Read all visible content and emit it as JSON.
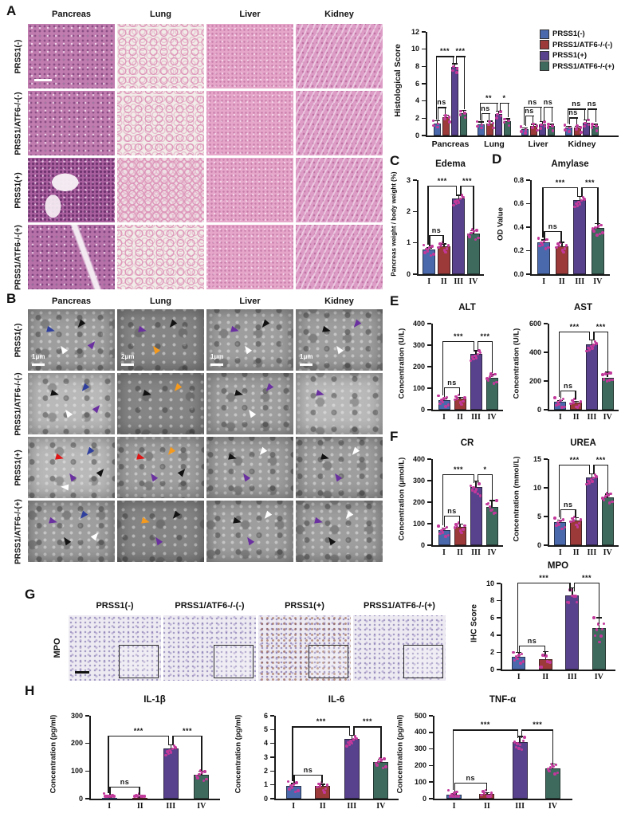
{
  "colors": {
    "group_blue": "#4a69ad",
    "group_red": "#9c3a3a",
    "group_purple": "#58418d",
    "group_teal": "#3e6a5e",
    "scatter_dots": "#c2399b",
    "axis": "#1a1a1a",
    "arrow_blue": "#2f3f9e",
    "arrow_black": "#111111",
    "arrow_white": "#ffffff",
    "arrow_purple": "#6a30a0",
    "arrow_orange": "#f59a1d",
    "arrow_red": "#e01414"
  },
  "legend": {
    "items": [
      {
        "label": "PRSS1(-)",
        "color": "#4a69ad"
      },
      {
        "label": "PRSS1/ATF6-/-(-)",
        "color": "#9c3a3a"
      },
      {
        "label": "PRSS1(+)",
        "color": "#58418d"
      },
      {
        "label": "PRSS1/ATF6-/-(+)",
        "color": "#3e6a5e"
      }
    ]
  },
  "panels": {
    "A": {
      "letter": "A",
      "columns": [
        "Pancreas",
        "Lung",
        "Liver",
        "Kidney"
      ],
      "rows": [
        "PRSS1(-)",
        "PRSS1/ATF6-/-(-)",
        "PRSS1(+)",
        "PRSS1/ATF6-/-(+)"
      ]
    },
    "B": {
      "letter": "B",
      "columns": [
        "Pancreas",
        "Lung",
        "Liver",
        "Kidney"
      ],
      "rows": [
        "PRSS1(-)",
        "PRSS1/ATF6-/-(-)",
        "PRSS1(+)",
        "PRSS1/ATF6-/-(+)"
      ],
      "scale_bars": [
        "1μm",
        "2μm",
        "1μm",
        "1μm"
      ],
      "tiles": [
        [
          {
            "shade": 1,
            "arrows": [
              "blue",
              "black",
              "white",
              "purple"
            ]
          },
          {
            "shade": 2,
            "arrows": [
              "purple",
              "black",
              "orange"
            ]
          },
          {
            "shade": 1,
            "arrows": [
              "purple",
              "black",
              "white"
            ]
          },
          {
            "shade": 1,
            "arrows": [
              "black",
              "purple",
              "white"
            ]
          }
        ],
        [
          {
            "shade": 0,
            "arrows": [
              "black",
              "blue",
              "white",
              "purple"
            ]
          },
          {
            "shade": 2,
            "arrows": [
              "black",
              "orange"
            ]
          },
          {
            "shade": 1,
            "arrows": [
              "black",
              "purple",
              "white"
            ]
          },
          {
            "shade": 0,
            "arrows": [
              "purple"
            ]
          }
        ],
        [
          {
            "shade": 0,
            "arrows": [
              "red",
              "blue",
              "purple",
              "black",
              "white"
            ]
          },
          {
            "shade": 1,
            "arrows": [
              "red",
              "orange",
              "purple",
              "black"
            ]
          },
          {
            "shade": 1,
            "arrows": [
              "black",
              "white",
              "purple"
            ]
          },
          {
            "shade": 1,
            "arrows": [
              "black",
              "white",
              "purple"
            ]
          }
        ],
        [
          {
            "shade": 1,
            "arrows": [
              "purple",
              "blue",
              "black",
              "white"
            ]
          },
          {
            "shade": 2,
            "arrows": [
              "orange",
              "black",
              "purple"
            ]
          },
          {
            "shade": 1,
            "arrows": [
              "black",
              "white",
              "purple"
            ]
          },
          {
            "shade": 1,
            "arrows": [
              "purple",
              "white",
              "black"
            ]
          }
        ]
      ]
    },
    "C": {
      "letter": "C"
    },
    "D": {
      "letter": "D"
    },
    "E": {
      "letter": "E"
    },
    "F": {
      "letter": "F"
    },
    "G": {
      "letter": "G",
      "row_label": "MPO",
      "columns": [
        "PRSS1(-)",
        "PRSS1/ATF6-/-(-)",
        "PRSS1(+)",
        "PRSS1/ATF6-/-(+)"
      ]
    },
    "H": {
      "letter": "H"
    }
  },
  "chart_data": [
    {
      "id": "histological_score",
      "type": "grouped_bar",
      "title": "",
      "ylabel": "Histological Score",
      "ylim": [
        0,
        12
      ],
      "yticks": [
        0,
        2,
        4,
        6,
        8,
        10,
        12
      ],
      "categories": [
        "Pancreas",
        "Lung",
        "Liver",
        "Kidney"
      ],
      "series": [
        {
          "name": "PRSS1(-)",
          "values": [
            1.4,
            1.3,
            0.7,
            0.9
          ],
          "errors": [
            0.3,
            0.25,
            0.2,
            0.15
          ]
        },
        {
          "name": "PRSS1/ATF6-/-(-)",
          "values": [
            2.1,
            1.4,
            1.1,
            0.9
          ],
          "errors": [
            0.25,
            0.25,
            0.2,
            0.15
          ]
        },
        {
          "name": "PRSS1(+)",
          "values": [
            7.9,
            2.5,
            1.3,
            1.5
          ],
          "errors": [
            0.4,
            0.3,
            0.3,
            0.3
          ]
        },
        {
          "name": "PRSS1/ATF6-/-(+)",
          "values": [
            2.6,
            1.7,
            1.1,
            1.1
          ],
          "errors": [
            0.3,
            0.25,
            0.2,
            0.2
          ]
        }
      ],
      "sig": [
        {
          "I_II": "ns",
          "I_III": "***",
          "III_IV": "***"
        },
        {
          "I_II": "ns",
          "I_III": "**",
          "III_IV": "*"
        },
        {
          "I_II": "ns",
          "I_III": "ns",
          "III_IV": "ns"
        },
        {
          "I_II": "ns",
          "I_III": "ns",
          "III_IV": "ns"
        }
      ],
      "legend_position": "top-right"
    },
    {
      "id": "edema",
      "type": "bar",
      "title": "Edema",
      "ylabel": "Pancreas weight / body weight (%)",
      "ylim": [
        0,
        3
      ],
      "yticks": [
        0,
        1,
        2,
        3
      ],
      "categories": [
        "I",
        "II",
        "III",
        "IV"
      ],
      "values": [
        0.8,
        0.9,
        2.42,
        1.3
      ],
      "errors": [
        0.04,
        0.06,
        0.1,
        0.08
      ],
      "sig": {
        "I_II": "ns",
        "I_III": "***",
        "III_IV": "***"
      }
    },
    {
      "id": "amylase",
      "type": "bar",
      "title": "Amylase",
      "ylabel": "OD Value",
      "ylim": [
        0,
        0.8
      ],
      "yticks": [
        0.0,
        0.2,
        0.4,
        0.6,
        0.8
      ],
      "categories": [
        "I",
        "II",
        "III",
        "IV"
      ],
      "values": [
        0.27,
        0.24,
        0.63,
        0.39
      ],
      "errors": [
        0.02,
        0.03,
        0.03,
        0.04
      ],
      "sig": {
        "I_II": "ns",
        "I_III": "***",
        "III_IV": "***"
      }
    },
    {
      "id": "alt",
      "type": "bar",
      "title": "ALT",
      "ylabel": "Concentration (U/L)",
      "ylim": [
        0,
        400
      ],
      "yticks": [
        0,
        100,
        200,
        300,
        400
      ],
      "categories": [
        "I",
        "II",
        "III",
        "IV"
      ],
      "values": [
        45,
        52,
        260,
        150
      ],
      "errors": [
        5,
        6,
        15,
        13
      ],
      "sig": {
        "I_II": "ns",
        "I_III": "***",
        "III_IV": "***"
      }
    },
    {
      "id": "ast",
      "type": "bar",
      "title": "AST",
      "ylabel": "Concentration (U/L)",
      "ylim": [
        0,
        600
      ],
      "yticks": [
        0,
        200,
        400,
        600
      ],
      "categories": [
        "I",
        "II",
        "III",
        "IV"
      ],
      "values": [
        55,
        50,
        455,
        225
      ],
      "errors": [
        8,
        8,
        30,
        35
      ],
      "sig": {
        "I_II": "ns",
        "I_III": "***",
        "III_IV": "***"
      }
    },
    {
      "id": "cr",
      "type": "bar",
      "title": "CR",
      "ylabel": "Concentration (μmol/L)",
      "ylim": [
        0,
        400
      ],
      "yticks": [
        0,
        100,
        200,
        300,
        400
      ],
      "categories": [
        "I",
        "II",
        "III",
        "IV"
      ],
      "values": [
        70,
        87,
        270,
        178
      ],
      "errors": [
        10,
        12,
        28,
        30
      ],
      "sig": {
        "I_II": "ns",
        "I_III": "***",
        "III_IV": "*"
      }
    },
    {
      "id": "urea",
      "type": "bar",
      "title": "UREA",
      "ylabel": "Concentration (mmol/L)",
      "ylim": [
        0,
        15
      ],
      "yticks": [
        0,
        5,
        10,
        15
      ],
      "categories": [
        "I",
        "II",
        "III",
        "IV"
      ],
      "values": [
        4.0,
        4.3,
        11.8,
        8.4
      ],
      "errors": [
        0.4,
        0.5,
        0.6,
        0.5
      ],
      "sig": {
        "I_II": "ns",
        "I_III": "***",
        "III_IV": "***"
      }
    },
    {
      "id": "mpo",
      "type": "bar",
      "title": "MPO",
      "ylabel": "IHC Score",
      "ylim": [
        0,
        10
      ],
      "yticks": [
        0,
        2,
        4,
        6,
        8,
        10
      ],
      "categories": [
        "I",
        "II",
        "III",
        "IV"
      ],
      "values": [
        1.5,
        1.2,
        8.6,
        4.8
      ],
      "errors": [
        0.5,
        0.9,
        0.9,
        1.2
      ],
      "sig": {
        "I_II": "ns",
        "I_III": "***",
        "III_IV": "***"
      }
    },
    {
      "id": "il1b",
      "type": "bar",
      "title": "IL-1β",
      "ylabel": "Concentration (pg/ml)",
      "ylim": [
        0,
        300
      ],
      "yticks": [
        0,
        100,
        200,
        300
      ],
      "categories": [
        "I",
        "II",
        "III",
        "IV"
      ],
      "values": [
        3,
        4,
        182,
        87
      ],
      "errors": [
        1,
        1.5,
        12,
        12
      ],
      "sig": {
        "I_II": "ns",
        "I_III": "***",
        "III_IV": "***"
      }
    },
    {
      "id": "il6",
      "type": "bar",
      "title": "IL-6",
      "ylabel": "Concentration (pg/ml)",
      "ylim": [
        0,
        6
      ],
      "yticks": [
        0,
        1,
        2,
        3,
        4,
        5,
        6
      ],
      "categories": [
        "I",
        "II",
        "III",
        "IV"
      ],
      "values": [
        0.95,
        0.92,
        4.3,
        2.65
      ],
      "errors": [
        0.15,
        0.12,
        0.3,
        0.2
      ],
      "sig": {
        "I_II": "ns",
        "I_III": "***",
        "III_IV": "***"
      }
    },
    {
      "id": "tnfa",
      "type": "bar",
      "title": "TNF-α",
      "ylabel": "Concentration (pg/ml)",
      "ylim": [
        0,
        500
      ],
      "yticks": [
        0,
        100,
        200,
        300,
        400,
        500
      ],
      "categories": [
        "I",
        "II",
        "III",
        "IV"
      ],
      "values": [
        25,
        30,
        340,
        185
      ],
      "errors": [
        5,
        6,
        35,
        25
      ],
      "sig": {
        "I_II": "ns",
        "I_III": "***",
        "III_IV": "***"
      }
    }
  ]
}
